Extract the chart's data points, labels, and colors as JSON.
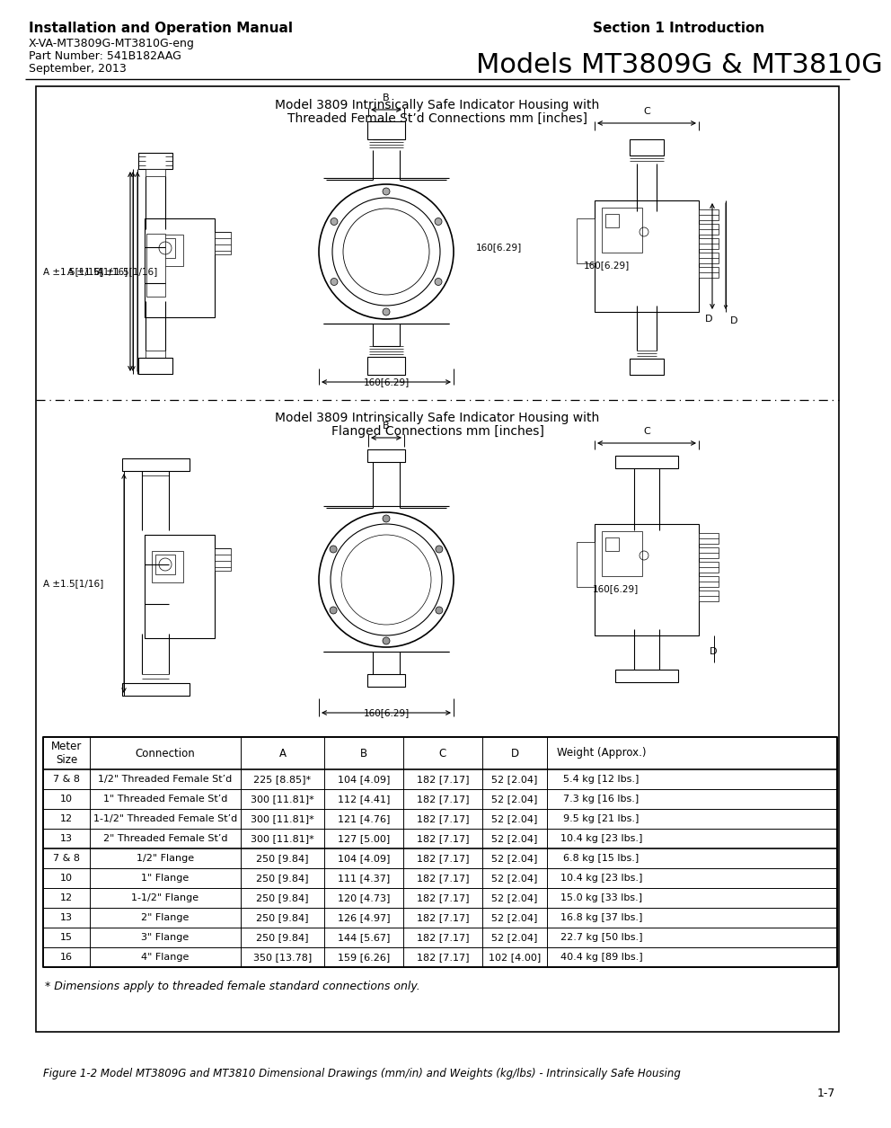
{
  "page_bg": "#ffffff",
  "header": {
    "left_line1": "Installation and Operation Manual",
    "left_line2": "X-VA-MT3809G-MT3810G-eng",
    "left_line3": "Part Number: 541B182AAG",
    "left_line4": "September, 2013",
    "right_line1": "Section 1 Introduction",
    "right_line2": "Models MT3809G & MT3810G"
  },
  "figure_caption": "Figure 1-2 Model MT3809G and MT3810 Dimensional Drawings (mm/in) and Weights (kg/lbs) - Intrinsically Safe Housing",
  "page_number": "1-7",
  "section1_title_line1": "Model 3809 Intrinsically Safe Indicator Housing with",
  "section1_title_line2": "Threaded Female St’d Connections mm [inches]",
  "section2_title_line1": "Model 3809 Intrinsically Safe Indicator Housing with",
  "section2_title_line2": "Flanged Connections mm [inches]",
  "table_headers": [
    "Meter\nSize",
    "Connection",
    "A",
    "B",
    "C",
    "D",
    "Weight (Approx.)"
  ],
  "table_rows": [
    [
      "7 & 8",
      "1/2\" Threaded Female St’d",
      "225 [8.85]*",
      "104 [4.09]",
      "182 [7.17]",
      "52 [2.04]",
      "5.4 kg [12 lbs.]"
    ],
    [
      "10",
      "1\" Threaded Female St’d",
      "300 [11.81]*",
      "112 [4.41]",
      "182 [7.17]",
      "52 [2.04]",
      "7.3 kg [16 lbs.]"
    ],
    [
      "12",
      "1-1/2\" Threaded Female St’d",
      "300 [11.81]*",
      "121 [4.76]",
      "182 [7.17]",
      "52 [2.04]",
      "9.5 kg [21 lbs.]"
    ],
    [
      "13",
      "2\" Threaded Female St’d",
      "300 [11.81]*",
      "127 [5.00]",
      "182 [7.17]",
      "52 [2.04]",
      "10.4 kg [23 lbs.]"
    ],
    [
      "7 & 8",
      "1/2\" Flange",
      "250 [9.84]",
      "104 [4.09]",
      "182 [7.17]",
      "52 [2.04]",
      "6.8 kg [15 lbs.]"
    ],
    [
      "10",
      "1\" Flange",
      "250 [9.84]",
      "111 [4.37]",
      "182 [7.17]",
      "52 [2.04]",
      "10.4 kg [23 lbs.]"
    ],
    [
      "12",
      "1-1/2\" Flange",
      "250 [9.84]",
      "120 [4.73]",
      "182 [7.17]",
      "52 [2.04]",
      "15.0 kg [33 lbs.]"
    ],
    [
      "13",
      "2\" Flange",
      "250 [9.84]",
      "126 [4.97]",
      "182 [7.17]",
      "52 [2.04]",
      "16.8 kg [37 lbs.]"
    ],
    [
      "15",
      "3\" Flange",
      "250 [9.84]",
      "144 [5.67]",
      "182 [7.17]",
      "52 [2.04]",
      "22.7 kg [50 lbs.]"
    ],
    [
      "16",
      "4\" Flange",
      "350 [13.78]",
      "159 [6.26]",
      "182 [7.17]",
      "102 [4.00]",
      "40.4 kg [89 lbs.]"
    ]
  ],
  "footnote": "* Dimensions apply to threaded female standard connections only."
}
